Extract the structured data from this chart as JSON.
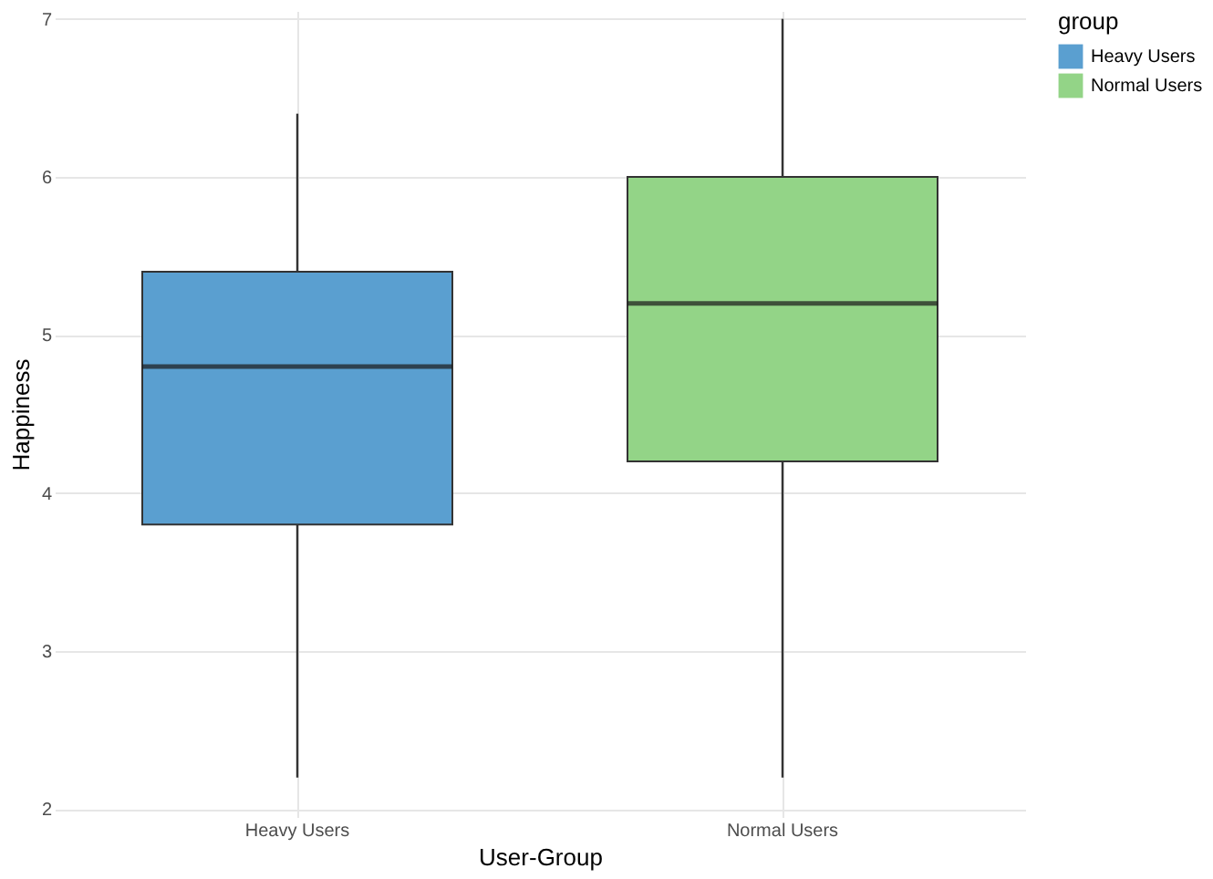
{
  "chart_data": {
    "type": "box",
    "xlabel": "User-Group",
    "ylabel": "Happiness",
    "legend_title": "group",
    "categories": [
      "Heavy Users",
      "Normal Users"
    ],
    "series": [
      {
        "name": "Heavy Users",
        "color": "#5a9fd0",
        "boxes": [
          {
            "low": 2.2,
            "q1": 3.8,
            "median": 4.8,
            "q3": 5.4,
            "high": 6.4
          },
          null
        ]
      },
      {
        "name": "Normal Users",
        "color": "#93d487",
        "boxes": [
          null,
          {
            "low": 2.2,
            "q1": 4.2,
            "median": 5.2,
            "q3": 6.0,
            "high": 7.0
          }
        ]
      }
    ],
    "ylim": [
      1.95,
      7.05
    ],
    "yticks": [
      2,
      3,
      4,
      5,
      6,
      7
    ],
    "grid": true,
    "legend": "right"
  }
}
